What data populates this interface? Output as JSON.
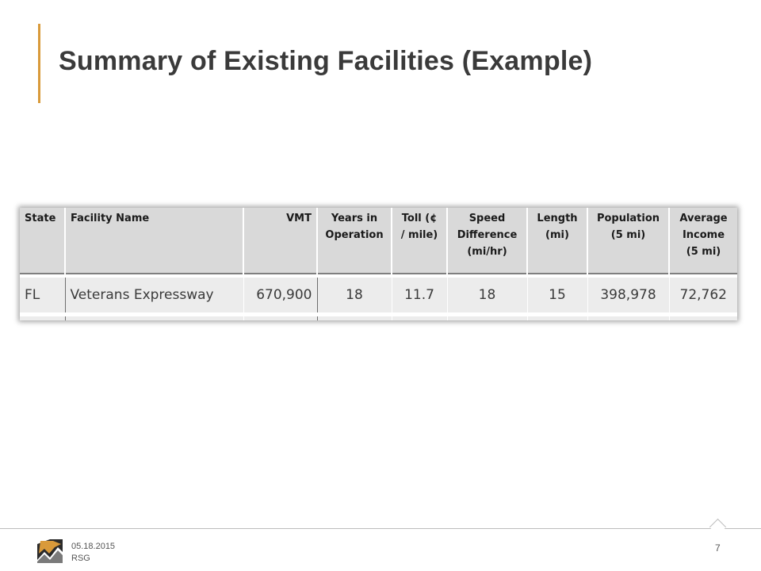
{
  "slide": {
    "title": "Summary of Existing Facilities (Example)"
  },
  "table": {
    "headers": [
      "State",
      "Facility Name",
      "VMT",
      "Years in\nOperation",
      "Toll (¢\n/ mile)",
      "Speed\nDifference\n(mi/hr)",
      "Length\n(mi)",
      "Population\n(5 mi)",
      "Average\nIncome\n(5 mi)"
    ],
    "rows": [
      {
        "state": "FL",
        "facility_name": "Veterans Expressway",
        "vmt": "670,900",
        "years_in_operation": "18",
        "toll": "11.7",
        "speed_difference": "18",
        "length": "15",
        "population": "398,978",
        "average_income": "72,762"
      }
    ]
  },
  "footer": {
    "date": "05.18.2015",
    "org": "RSG",
    "page_number": "7",
    "logo_icon": "rsg-mountain-logo-icon",
    "accent_color": "#d99a3a"
  }
}
